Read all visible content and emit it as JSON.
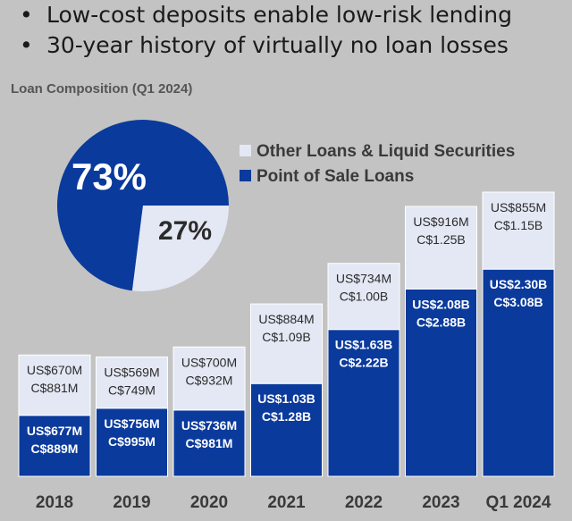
{
  "bullets": [
    "Low-cost deposits enable low-risk lending",
    "30-year history of virtually no loan losses"
  ],
  "colors": {
    "background": "#c3c3c3",
    "point_of_sale": "#0a3a9c",
    "other": "#e3e8f4",
    "label_dark": "#2b2b2b",
    "subtitle": "#555555"
  },
  "chart_data": [
    {
      "type": "pie",
      "title": "Loan Composition (Q1 2024)",
      "categories": [
        "Point of Sale Loans",
        "Other Loans & Liquid Securities"
      ],
      "values": [
        73,
        27
      ],
      "labels": [
        "73%",
        "27%"
      ]
    },
    {
      "type": "bar",
      "stacked": true,
      "categories": [
        "2018",
        "2019",
        "2020",
        "2021",
        "2022",
        "2023",
        "Q1 2024"
      ],
      "legend_position": "top-right",
      "series": [
        {
          "name": "Point of Sale Loans",
          "values": [
            677,
            756,
            736,
            1030,
            1630,
            2080,
            2300
          ],
          "labels_usd": [
            "US$677M",
            "US$756M",
            "US$736M",
            "US$1.03B",
            "US$1.63B",
            "US$2.08B",
            "US$2.30B"
          ],
          "labels_cad": [
            "C$889M",
            "C$995M",
            "C$981M",
            "C$1.28B",
            "C$2.22B",
            "C$2.88B",
            "C$3.08B"
          ]
        },
        {
          "name": "Other Loans & Liquid Securities",
          "values": [
            670,
            569,
            700,
            884,
            734,
            916,
            855
          ],
          "labels_usd": [
            "US$670M",
            "US$569M",
            "US$700M",
            "US$884M",
            "US$734M",
            "US$916M",
            "US$855M"
          ],
          "labels_cad": [
            "C$881M",
            "C$749M",
            "C$932M",
            "C$1.09B",
            "C$1.00B",
            "C$1.25B",
            "C$1.15B"
          ]
        }
      ]
    }
  ]
}
